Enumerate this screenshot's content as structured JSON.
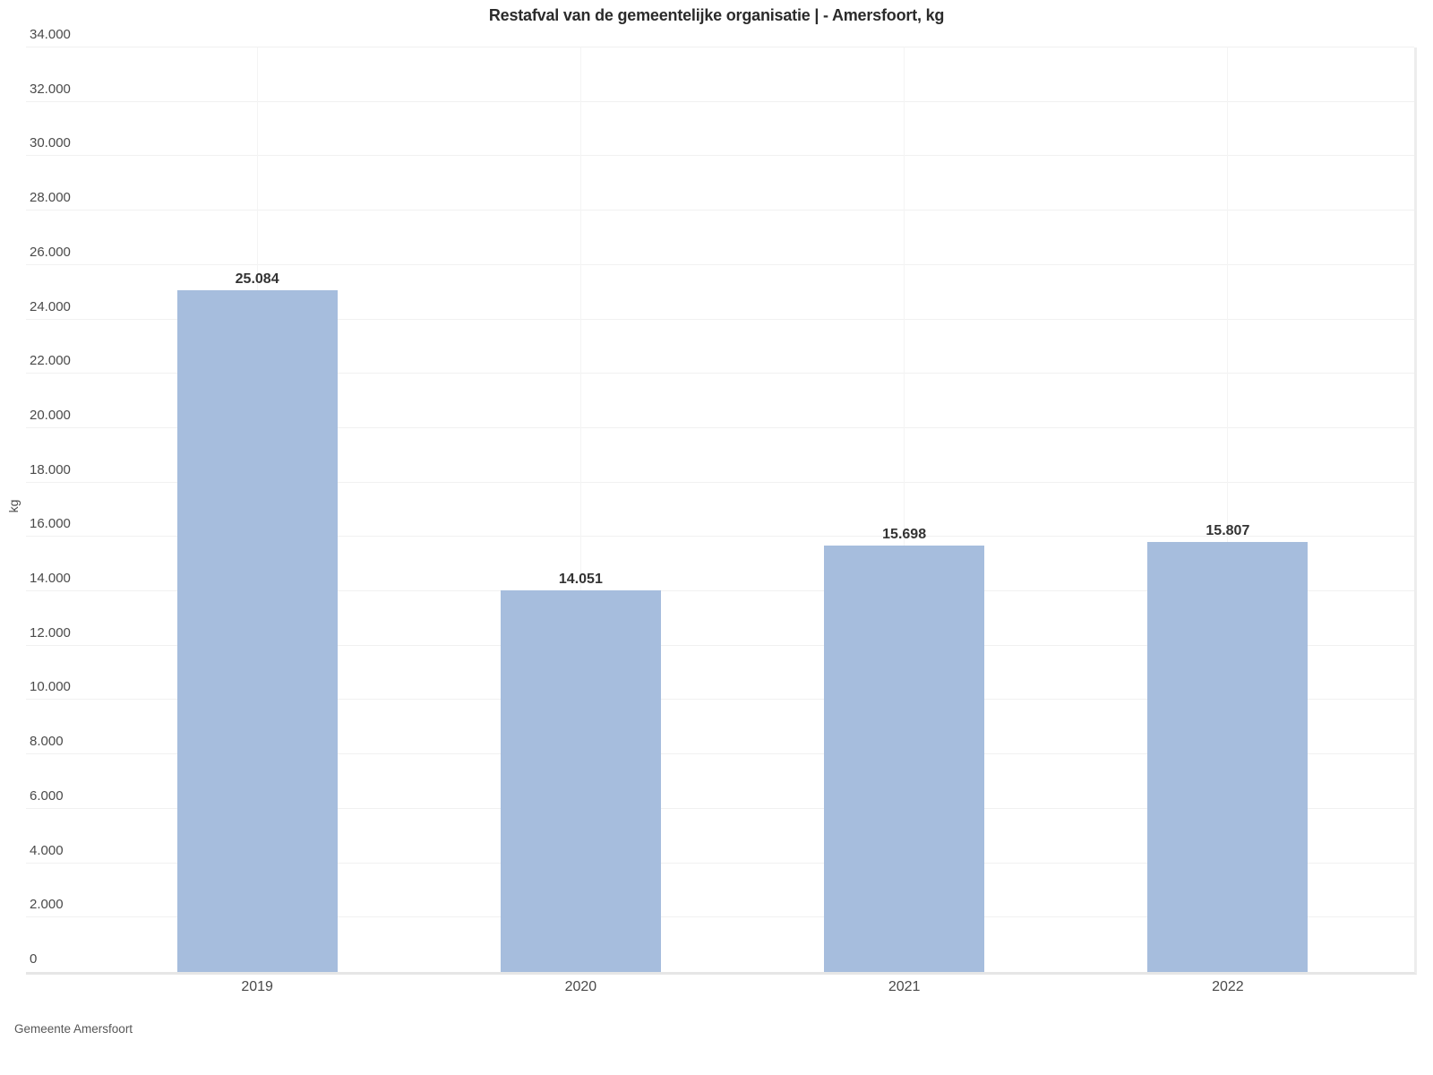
{
  "chart_data": {
    "type": "bar",
    "title": "Restafval van de gemeentelijke organisatie | - Amersfoort, kg",
    "ylabel": "kg",
    "xlabel": "",
    "categories": [
      "2019",
      "2020",
      "2021",
      "2022"
    ],
    "values": [
      25084,
      14051,
      15698,
      15807
    ],
    "value_labels": [
      "25.084",
      "14.051",
      "15.698",
      "15.807"
    ],
    "ylim": [
      0,
      34000
    ],
    "ytick_step": 2000,
    "ytick_labels": [
      "0",
      "2.000",
      "4.000",
      "6.000",
      "8.000",
      "10.000",
      "12.000",
      "14.000",
      "16.000",
      "18.000",
      "20.000",
      "22.000",
      "24.000",
      "26.000",
      "28.000",
      "30.000",
      "32.000",
      "34.000"
    ],
    "grid": true,
    "legend_position": "none",
    "bar_color": "#a6bddd",
    "source": "Gemeente Amersfoort"
  }
}
